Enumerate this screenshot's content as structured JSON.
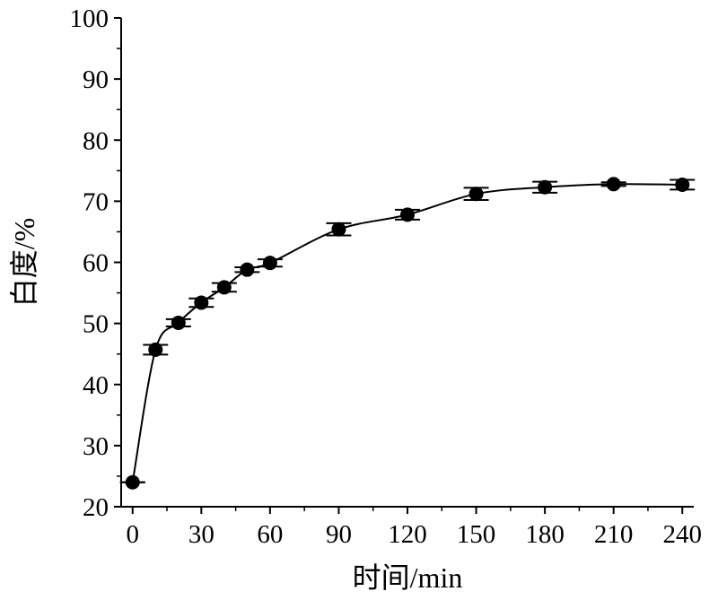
{
  "chart_data": {
    "type": "line",
    "title": "",
    "xlabel": "时间/min",
    "ylabel": "白度/%",
    "xlim": [
      -5,
      245
    ],
    "ylim": [
      20,
      100
    ],
    "x_ticks": [
      0,
      30,
      60,
      90,
      120,
      150,
      180,
      210,
      240
    ],
    "y_ticks": [
      20,
      30,
      40,
      50,
      60,
      70,
      80,
      90,
      100
    ],
    "grid": false,
    "legend": "none",
    "series": [
      {
        "x": [
          0,
          10,
          20,
          30,
          40,
          50,
          60,
          90,
          120,
          150,
          180,
          210,
          240
        ],
        "y": [
          24.0,
          45.7,
          50.1,
          53.4,
          55.9,
          58.8,
          59.9,
          65.4,
          67.8,
          71.2,
          72.3,
          72.8,
          72.7
        ],
        "err": [
          0.0,
          0.8,
          0.6,
          0.7,
          0.7,
          0.4,
          0.6,
          1.0,
          0.8,
          1.0,
          0.9,
          0.3,
          0.8
        ]
      }
    ],
    "colors": {
      "line": "#000000",
      "marker": "#000000"
    }
  }
}
